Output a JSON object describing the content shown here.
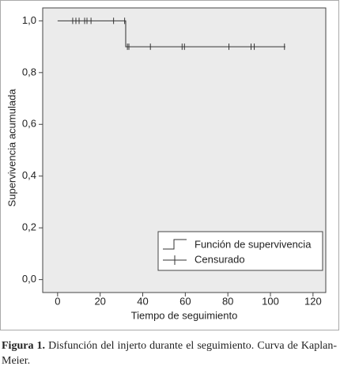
{
  "chart_data": {
    "type": "step",
    "ylabel": "Supervivencia acumulada",
    "xlabel": "Tiempo de seguimiento",
    "xlim": [
      -7,
      126
    ],
    "ylim": [
      -0.05,
      1.05
    ],
    "xticks": [
      0,
      20,
      40,
      60,
      80,
      100,
      120
    ],
    "yticks": [
      {
        "value": 0,
        "label": "0,0"
      },
      {
        "value": 0.2,
        "label": "0,2"
      },
      {
        "value": 0.4,
        "label": "0,4"
      },
      {
        "value": 0.6,
        "label": "0,6"
      },
      {
        "value": 0.8,
        "label": "0,8"
      },
      {
        "value": 1,
        "label": "1,0"
      }
    ],
    "legend": "lower right",
    "series": [
      {
        "name": "Función de supervivencia",
        "style": "step",
        "color": "#333333",
        "x": [
          0,
          32,
          107
        ],
        "values": [
          1.0,
          0.9,
          0.9
        ]
      },
      {
        "name": "Censurado",
        "style": "censor",
        "color": "#333333",
        "x": [
          7.1,
          8.6,
          10.1,
          12.7,
          13.8,
          15.7,
          26.3,
          31.5,
          32.8,
          33.5,
          43.6,
          58.5,
          59.6,
          80.5,
          90.9,
          92.4,
          106.6
        ],
        "values": [
          1,
          1,
          1,
          1,
          1,
          1,
          1,
          1,
          0.9,
          0.9,
          0.9,
          0.9,
          0.9,
          0.9,
          0.9,
          0.9,
          0.9
        ]
      }
    ]
  },
  "caption": {
    "label": "Figura 1.",
    "text": "Disfunción del injerto durante el seguimiento. Curva de Kaplan-Meier."
  }
}
